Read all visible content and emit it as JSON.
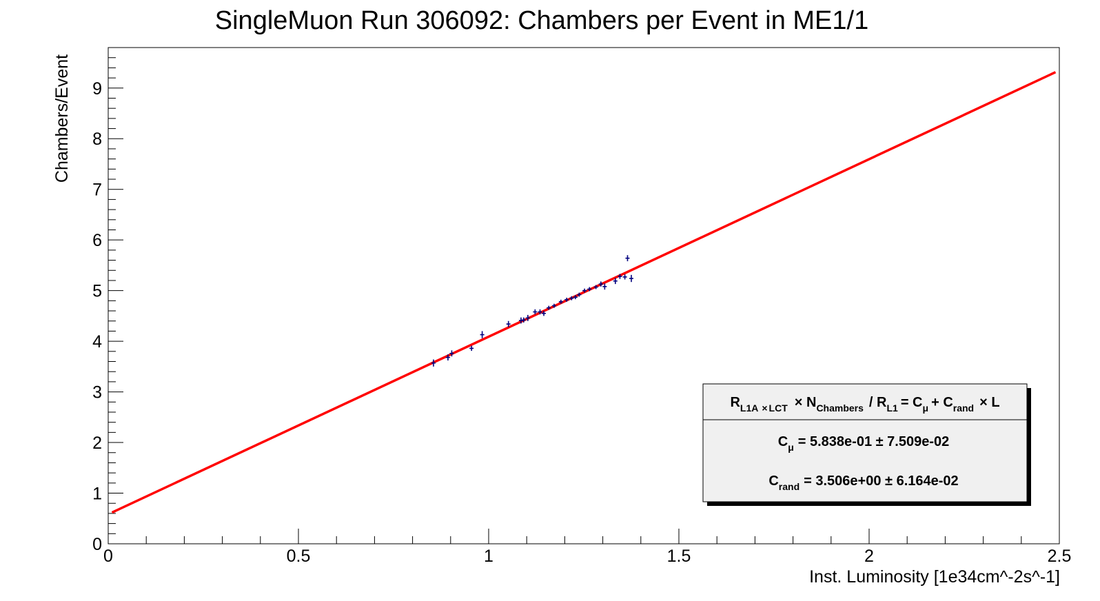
{
  "chart_data": {
    "type": "scatter",
    "title": "SingleMuon Run 306092: Chambers per Event in ME1/1",
    "xlabel": "Inst. Luminosity [1e34cm^-2s^-1]",
    "ylabel": "Chambers/Event",
    "xlim": [
      0,
      2.5
    ],
    "ylim": [
      0,
      9.8
    ],
    "x_ticks": [
      0,
      0.5,
      1,
      1.5,
      2,
      2.5
    ],
    "x_tick_labels": [
      "0",
      "0.5",
      "1",
      "1.5",
      "2",
      "2.5"
    ],
    "y_ticks": [
      0,
      1,
      2,
      3,
      4,
      5,
      6,
      7,
      8,
      9
    ],
    "y_tick_labels": [
      "0",
      "1",
      "2",
      "3",
      "4",
      "5",
      "6",
      "7",
      "8",
      "9"
    ],
    "grid": false,
    "legend_placement": "bottom-right",
    "colors": {
      "points": "#00007f",
      "fit": "#ff0000"
    },
    "points": [
      {
        "x": 0.855,
        "y": 3.57,
        "ey": 0.07
      },
      {
        "x": 0.893,
        "y": 3.68,
        "ey": 0.06
      },
      {
        "x": 0.903,
        "y": 3.76,
        "ey": 0.06
      },
      {
        "x": 0.955,
        "y": 3.86,
        "ey": 0.05
      },
      {
        "x": 0.983,
        "y": 4.13,
        "ey": 0.07
      },
      {
        "x": 1.052,
        "y": 4.34,
        "ey": 0.06
      },
      {
        "x": 1.085,
        "y": 4.41,
        "ey": 0.06
      },
      {
        "x": 1.092,
        "y": 4.42,
        "ey": 0.05
      },
      {
        "x": 1.103,
        "y": 4.46,
        "ey": 0.06
      },
      {
        "x": 1.122,
        "y": 4.58,
        "ey": 0.05
      },
      {
        "x": 1.135,
        "y": 4.58,
        "ey": 0.05
      },
      {
        "x": 1.145,
        "y": 4.55,
        "ey": 0.05
      },
      {
        "x": 1.158,
        "y": 4.66,
        "ey": 0.04
      },
      {
        "x": 1.172,
        "y": 4.7,
        "ey": 0.04
      },
      {
        "x": 1.19,
        "y": 4.78,
        "ey": 0.04
      },
      {
        "x": 1.205,
        "y": 4.82,
        "ey": 0.04
      },
      {
        "x": 1.218,
        "y": 4.85,
        "ey": 0.04
      },
      {
        "x": 1.228,
        "y": 4.87,
        "ey": 0.04
      },
      {
        "x": 1.238,
        "y": 4.92,
        "ey": 0.04
      },
      {
        "x": 1.252,
        "y": 5.0,
        "ey": 0.04
      },
      {
        "x": 1.265,
        "y": 5.03,
        "ey": 0.04
      },
      {
        "x": 1.282,
        "y": 5.07,
        "ey": 0.04
      },
      {
        "x": 1.295,
        "y": 5.13,
        "ey": 0.05
      },
      {
        "x": 1.305,
        "y": 5.08,
        "ey": 0.06
      },
      {
        "x": 1.333,
        "y": 5.19,
        "ey": 0.06
      },
      {
        "x": 1.345,
        "y": 5.28,
        "ey": 0.05
      },
      {
        "x": 1.358,
        "y": 5.27,
        "ey": 0.05
      },
      {
        "x": 1.365,
        "y": 5.64,
        "ey": 0.06
      },
      {
        "x": 1.375,
        "y": 5.24,
        "ey": 0.07
      }
    ],
    "fit": {
      "C_mu": 0.5838,
      "C_rand": 3.506,
      "x_range": [
        0.01,
        2.49
      ]
    },
    "legend": {
      "header": {
        "p1": "R",
        "p1_sub": "L1A",
        "p2": "×",
        "p2_sub": "LCT",
        "p3": "× N",
        "p3_sub": "Chambers",
        "p4": "/ R",
        "p4_sub": "L1",
        "p5": "= C",
        "p5_sub": "μ",
        "p6": "+ C",
        "p6_sub": "rand",
        "p7": "× L"
      },
      "row1": {
        "sym": "C",
        "sub": "μ",
        "text": "= 5.838e-01 ± 7.509e-02"
      },
      "row2": {
        "sym": "C",
        "sub": "rand",
        "text": "= 3.506e+00 ± 6.164e-02"
      }
    }
  }
}
